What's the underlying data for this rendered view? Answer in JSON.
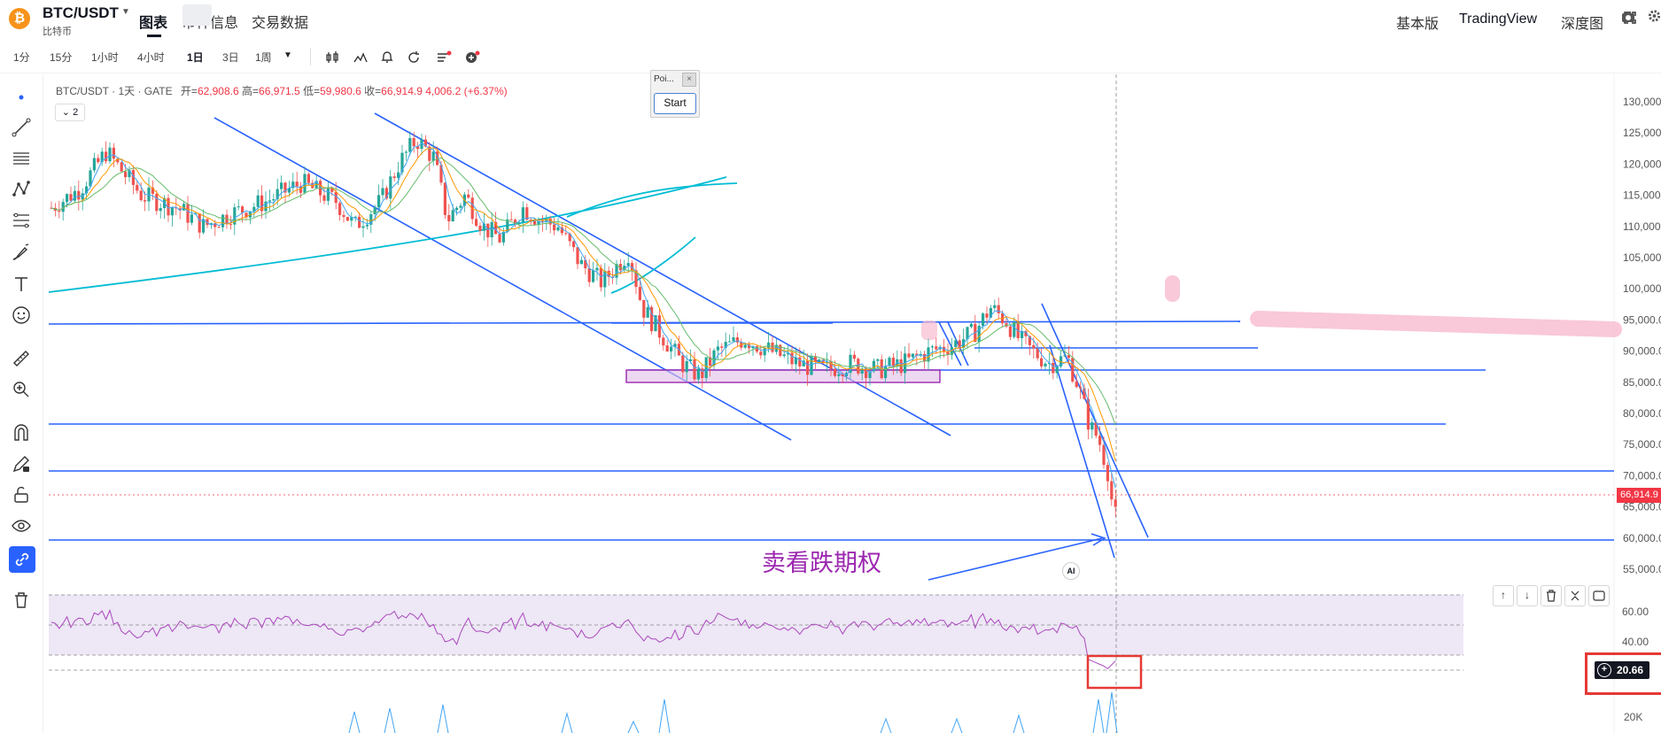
{
  "header": {
    "symbol": "BTC/USDT",
    "exchange_sub": "比特币",
    "logo": "₿",
    "tabs": [
      "图表",
      "币种信息",
      "交易数据"
    ],
    "right_buttons": [
      "基本版",
      "TradingView",
      "深度图"
    ]
  },
  "toolbar": {
    "timeframes": [
      "1分",
      "15分",
      "1小时",
      "4小时",
      "1日",
      "3日",
      "1周"
    ],
    "active_timeframe": "1日"
  },
  "legend": {
    "title": "BTC/USDT · 1天 · GATE",
    "open_label": "开=",
    "open": "62,908.6",
    "high_label": "高=",
    "high": "66,971.5",
    "low_label": "低=",
    "low": "59,980.6",
    "close_label": "收=",
    "close": "66,914.9",
    "change": "4,006.2 (+6.37%)"
  },
  "indicator_toggle": "2",
  "popup": {
    "title": "Poi...",
    "close": "×",
    "button": "Start"
  },
  "price_axis": [
    "130,000.",
    "125,000.",
    "120,000.",
    "115,000.",
    "110,000.",
    "105,000.",
    "100,000.",
    "95,000.0",
    "90,000.0",
    "85,000.0",
    "80,000.0",
    "75,000.0",
    "70,000.0",
    "65,000.0",
    "60,000.0",
    "55,000.0"
  ],
  "price_tag": "66,914.9",
  "rsi_axis": [
    "60.00",
    "40.00",
    "20K"
  ],
  "rsi_value": "20.66",
  "annotation": "卖看跌期权",
  "ai_badge": "AI",
  "pane_buttons": [
    "↑",
    "↓"
  ],
  "colors": {
    "up": "#26a69a",
    "down": "#ef5350",
    "trendline": "#2962ff",
    "cyan_curve": "#00bcd4",
    "annotation": "#9c27b0",
    "highlight": "#e53935",
    "rsi_band": "#ede7f6"
  }
}
